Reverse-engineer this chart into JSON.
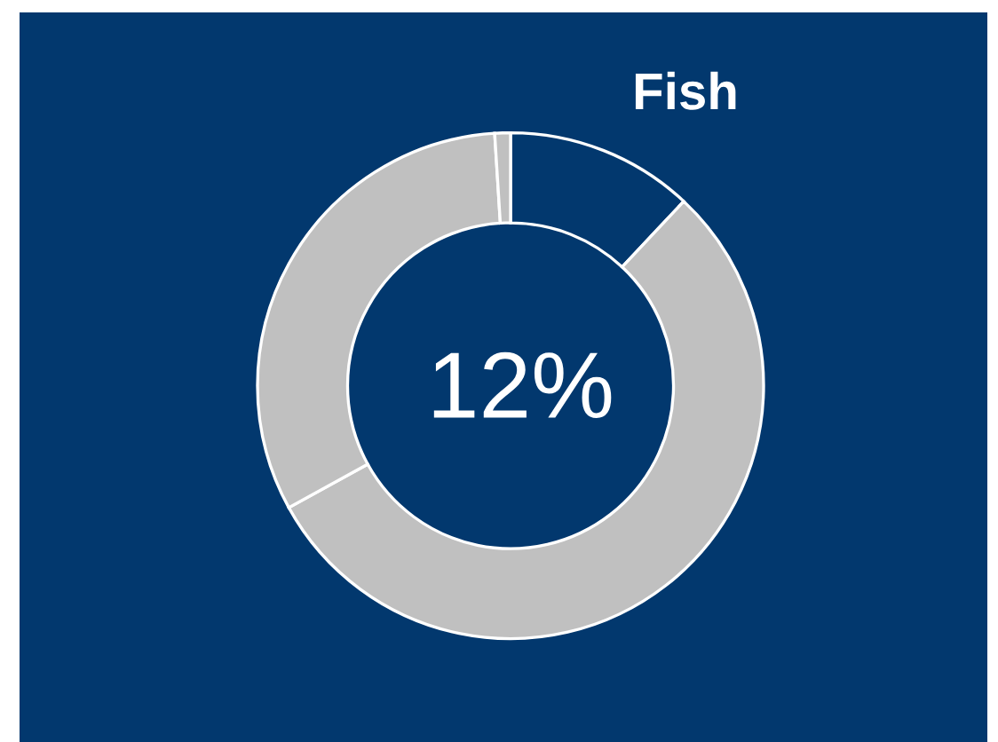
{
  "chart_data": {
    "type": "donut",
    "title": "Fish",
    "categories": [
      null,
      null,
      null,
      null
    ],
    "values": [
      12,
      55,
      32,
      1
    ],
    "colors": [
      "#02386e",
      "#c0c0c0",
      "#c0c0c0",
      "#c0c0c0"
    ],
    "annotations": [
      "12%"
    ]
  }
}
